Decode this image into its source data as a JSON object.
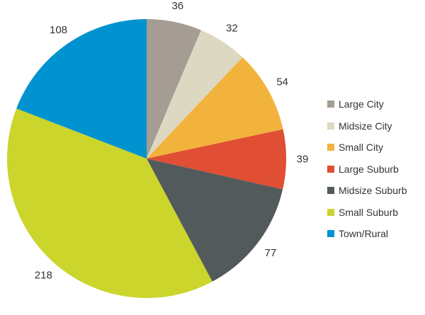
{
  "chart_data": {
    "type": "pie",
    "title": "",
    "start_angle_deg": 0,
    "direction": "clockwise",
    "legend_position": "right",
    "slices": [
      {
        "label": "Large City",
        "value": 36,
        "color": "#a59d94"
      },
      {
        "label": "Midsize City",
        "value": 32,
        "color": "#dcd8c2"
      },
      {
        "label": "Small City",
        "value": 54,
        "color": "#f2b33d"
      },
      {
        "label": "Large Suburb",
        "value": 39,
        "color": "#e04e33"
      },
      {
        "label": "Midsize Suburb",
        "value": 77,
        "color": "#535a5c"
      },
      {
        "label": "Small Suburb",
        "value": 218,
        "color": "#cbd52c"
      },
      {
        "label": "Town/Rural",
        "value": 108,
        "color": "#0093d0"
      }
    ]
  }
}
